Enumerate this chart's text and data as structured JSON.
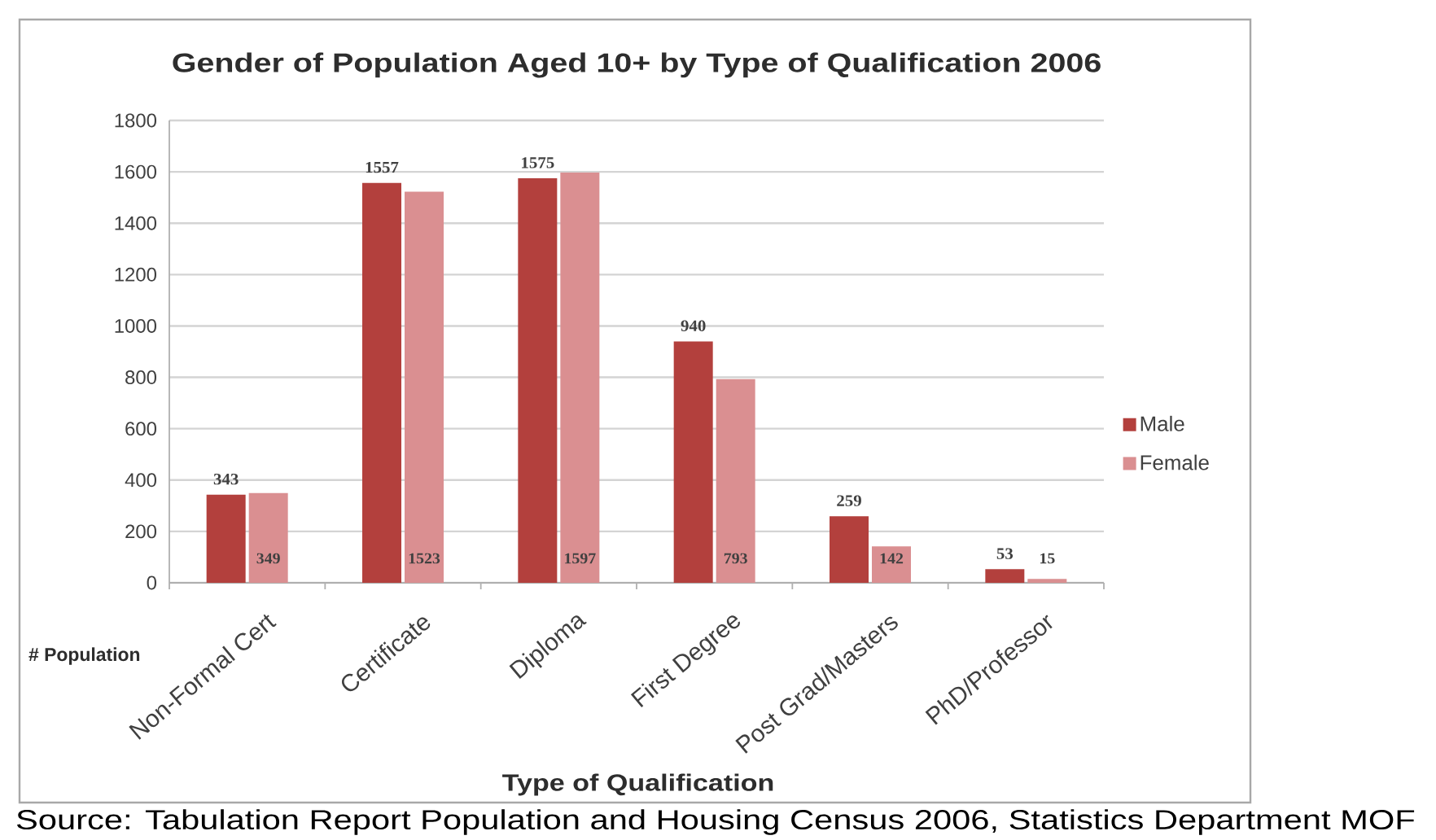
{
  "chart_data": {
    "type": "bar",
    "title": "Gender of Population Aged 10+ by Type of Qualification 2006",
    "xlabel": "Type of Qualification",
    "ylabel": "# Population",
    "categories": [
      "Non-Formal Cert",
      "Certificate",
      "Diploma",
      "First Degree",
      "Post Grad/Masters",
      "PhD/Professor"
    ],
    "series": [
      {
        "name": "Male",
        "color": "#b3403d",
        "values": [
          343,
          1557,
          1575,
          940,
          259,
          53
        ]
      },
      {
        "name": "Female",
        "color": "#da8f91",
        "values": [
          349,
          1523,
          1597,
          793,
          142,
          15
        ]
      }
    ],
    "ylim": [
      0,
      1800
    ],
    "yticks": [
      0,
      200,
      400,
      600,
      800,
      1000,
      1200,
      1400,
      1600,
      1800
    ],
    "grid": "y",
    "legend": "right",
    "data_labels": true,
    "annotations": [
      "Source: Tabulation Report Population and Housing Census 2006, Statistics Department MOF"
    ]
  }
}
